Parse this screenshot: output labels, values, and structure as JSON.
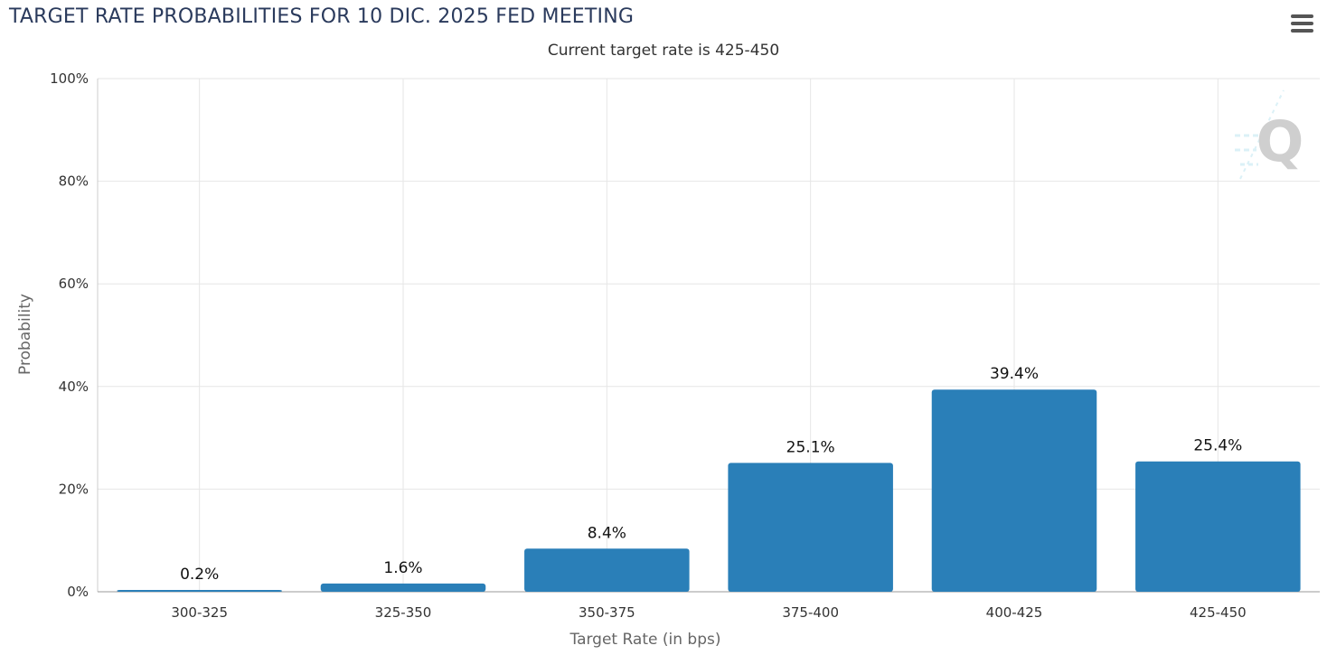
{
  "chart_data": {
    "type": "bar",
    "title": "TARGET RATE PROBABILITIES FOR 10 DIC. 2025 FED MEETING",
    "subtitle": "Current target rate is 425-450",
    "xlabel": "Target Rate (in bps)",
    "ylabel": "Probability",
    "categories": [
      "300-325",
      "325-350",
      "350-375",
      "375-400",
      "400-425",
      "425-450"
    ],
    "values": [
      0.2,
      1.6,
      8.4,
      25.1,
      39.4,
      25.4
    ],
    "value_labels": [
      "0.2%",
      "1.6%",
      "8.4%",
      "25.1%",
      "39.4%",
      "25.4%"
    ],
    "ylim": [
      0,
      100
    ],
    "yticks": [
      0,
      20,
      40,
      60,
      80,
      100
    ],
    "ytick_labels": [
      "0%",
      "20%",
      "40%",
      "60%",
      "80%",
      "100%"
    ],
    "grid": true,
    "bar_color": "#2a7fb8"
  },
  "menu": {
    "icon": "hamburger-menu-icon"
  },
  "watermark": {
    "icon": "quikstrike-q-logo-icon",
    "text": "Q"
  }
}
